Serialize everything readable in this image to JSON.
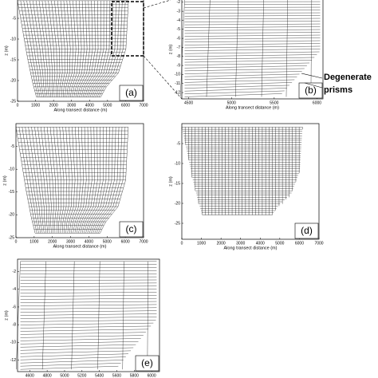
{
  "chart_data": [
    {
      "type": "mesh",
      "label": "(a)",
      "xlabel": "Along transect distance (m)",
      "ylabel": "z (m)",
      "xlim": [
        0,
        7000
      ],
      "ylim": [
        -25,
        0
      ],
      "xticks": [
        0,
        1000,
        2000,
        3000,
        4000,
        5000,
        6000,
        7000
      ],
      "yticks": [
        -25,
        -20,
        -15,
        -10,
        -5
      ]
    },
    {
      "type": "mesh",
      "label": "(b)",
      "xlabel": "Along transect distance (m)",
      "ylabel": "z (m)",
      "xlim": [
        4420,
        6070
      ],
      "ylim": [
        -12.7,
        -1.4
      ],
      "xticks": [
        4500,
        5000,
        5500,
        6000
      ],
      "yticks": [
        -12,
        -11,
        -10,
        -9,
        -8,
        -7,
        -6,
        -5,
        -4,
        -3,
        -2
      ],
      "annotation": [
        "Degenerate",
        "prisms"
      ]
    },
    {
      "type": "mesh",
      "label": "(c)",
      "xlabel": "Along transect distance (m)",
      "ylabel": "z (m)",
      "xlim": [
        0,
        7000
      ],
      "ylim": [
        -25,
        0
      ],
      "xticks": [
        0,
        1000,
        2000,
        3000,
        4000,
        5000,
        6000,
        7000
      ],
      "yticks": [
        -25,
        -20,
        -15,
        -10,
        -5
      ]
    },
    {
      "type": "mesh",
      "label": "(d)",
      "xlabel": "Along transect distance (m)",
      "ylabel": "z (m)",
      "xlim": [
        0,
        7000
      ],
      "ylim": [
        -29,
        0
      ],
      "xticks": [
        0,
        1000,
        2000,
        3000,
        4000,
        5000,
        6000,
        7000
      ],
      "yticks": [
        -25,
        -20,
        -15,
        -10,
        -5
      ]
    },
    {
      "type": "mesh",
      "label": "(e)",
      "ylabel": "z (m)",
      "xlim": [
        4460,
        6090
      ],
      "ylim": [
        -13.3,
        -0.6
      ],
      "xticks": [
        4600,
        4800,
        5000,
        5200,
        5400,
        5600,
        5800,
        6000
      ],
      "yticks": [
        -12,
        -10,
        -8,
        -6,
        -4,
        -2
      ]
    }
  ]
}
